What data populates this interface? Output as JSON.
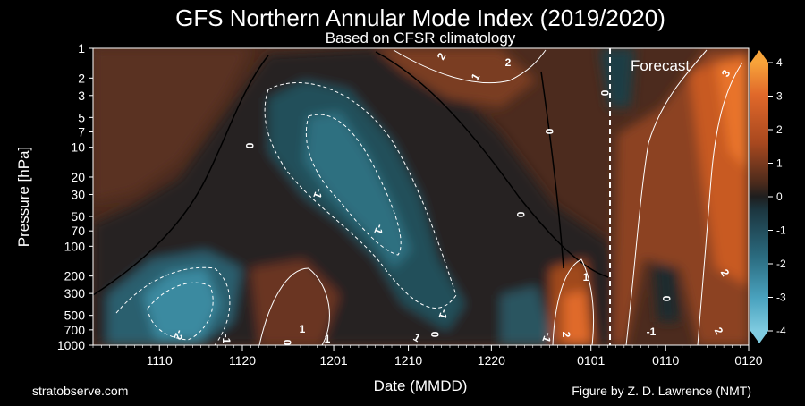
{
  "chart_data": {
    "type": "heatmap",
    "title": "GFS Northern Annular Mode Index (2019/2020)",
    "subtitle": "Based on CFSR climatology",
    "xlabel": "Date (MMDD)",
    "ylabel": "Pressure [hPa]",
    "x_ticks": [
      "1110",
      "1120",
      "1201",
      "1210",
      "1220",
      "0101",
      "0110",
      "0120"
    ],
    "y_ticks": [
      1,
      2,
      3,
      5,
      7,
      10,
      20,
      30,
      50,
      70,
      100,
      200,
      300,
      500,
      700,
      1000
    ],
    "y_scale": "log",
    "y_inverted": true,
    "xlim": [
      "2019-11-02",
      "2020-01-20"
    ],
    "ylim": [
      1000,
      1
    ],
    "colorbar": {
      "ticks": [
        4,
        3,
        2,
        1,
        0,
        -1,
        -2,
        -3,
        -4
      ],
      "vmin": -4,
      "vmax": 4
    },
    "forecast_start": "2020-01-04",
    "annotations": {
      "forecast": "Forecast"
    },
    "contour_labels": [
      "2",
      "1",
      "0",
      "2",
      "3",
      "0",
      "0",
      "-1",
      "-1",
      "0",
      "-1",
      "0",
      "1",
      "-2",
      "-1",
      "0",
      "1",
      "1",
      "-1",
      "2",
      "0",
      "2",
      "-1",
      "1",
      "2"
    ]
  },
  "footer": {
    "left": "stratobserve.com",
    "right": "Figure by Z. D. Lawrence (NMT)"
  }
}
